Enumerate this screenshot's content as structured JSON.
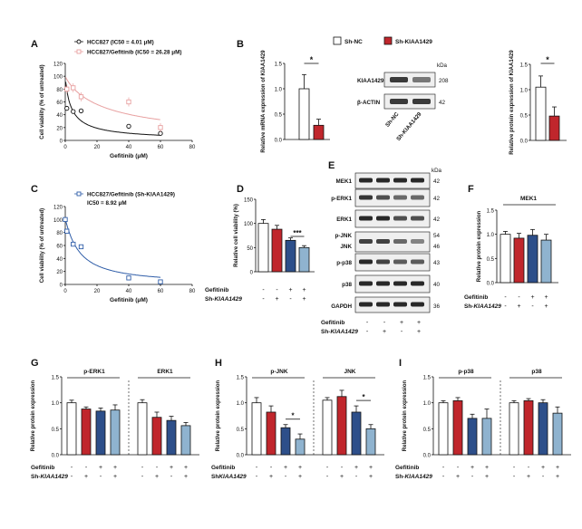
{
  "colors": {
    "sh_nc": "#ffffff",
    "sh_kiaa": "#c0262c",
    "dark_blue": "#2d4f8a",
    "light_blue": "#8fb3cf",
    "axis": "#111111",
    "pink": "#e8a0a0",
    "blue_line": "#2f5da8",
    "blot_bg": "#efefef",
    "blot_band": "#3a3a3a"
  },
  "legend_b": {
    "sh_nc": "Sh-NC",
    "sh_kiaa": "Sh-KIAA1429"
  },
  "panels": {
    "A": {
      "letter": "A",
      "legend1": "HCC827 (IC50 = 4.01 μM)",
      "legend2": "HCC827/Gefitinib (IC50 = 26.28 μM)",
      "ylabel": "Cell viability (% of untreated)",
      "xlabel": "Gefitinib (μM)",
      "xticks": [
        "0",
        "20",
        "40",
        "60",
        "80"
      ],
      "yticks": [
        "0",
        "20",
        "40",
        "60",
        "80",
        "100",
        "120"
      ],
      "curve1_ic50": 4.01,
      "curve2_ic50": 26.28,
      "points1": [
        [
          1,
          50
        ],
        [
          5,
          45
        ],
        [
          10,
          46
        ],
        [
          40,
          22
        ],
        [
          60,
          11
        ]
      ],
      "points2": [
        [
          1,
          80
        ],
        [
          5,
          82
        ],
        [
          10,
          68
        ],
        [
          40,
          60
        ],
        [
          60,
          20
        ]
      ]
    },
    "B": {
      "letter": "B",
      "ylabel": "Relative mRNA expression of KIAA1429",
      "yticks": [
        "0.0",
        "0.5",
        "1.0",
        "1.5"
      ],
      "values": [
        1.0,
        0.28
      ],
      "errors": [
        0.28,
        0.12
      ],
      "sig": "*",
      "blot_labels": [
        "KIAA1429",
        "β-ACTIN"
      ],
      "kda_title": "kDa",
      "kda": [
        "208",
        "42"
      ],
      "lanes": [
        "Sh-NC",
        "Sh-KIAA1429"
      ],
      "right_ylabel": "Relative protein expression of KIAA1429",
      "right_yticks": [
        "0.0",
        "0.5",
        "1.0",
        "1.5"
      ],
      "right_values": [
        1.05,
        0.48
      ],
      "right_errors": [
        0.22,
        0.18
      ],
      "right_sig": "*"
    },
    "C": {
      "letter": "C",
      "legend": "HCC827/Gefitinib (Sh-KIAA1429)",
      "legend2": "IC50 = 8.92 μM",
      "ylabel": "Cell viability (% of untreated)",
      "xlabel": "Gefitinib (μM)",
      "xticks": [
        "0",
        "20",
        "40",
        "60",
        "80"
      ],
      "yticks": [
        "0",
        "20",
        "40",
        "60",
        "80",
        "100",
        "120"
      ],
      "ic50": 8.92,
      "points": [
        [
          0,
          100
        ],
        [
          1,
          82
        ],
        [
          5,
          62
        ],
        [
          10,
          58
        ],
        [
          40,
          10
        ],
        [
          60,
          4
        ]
      ]
    },
    "D": {
      "letter": "D",
      "ylabel": "Relative cell viability (%)",
      "yticks": [
        "0",
        "50",
        "100",
        "150"
      ],
      "values": [
        100,
        88,
        65,
        50
      ],
      "errors": [
        8,
        8,
        5,
        4
      ],
      "sig": "***",
      "row1_label": "Gefitinib",
      "row1": [
        "-",
        "-",
        "+",
        "+"
      ],
      "row2_label": "Sh-KIAA1429",
      "row2": [
        "-",
        "+",
        "-",
        "+"
      ]
    },
    "E": {
      "letter": "E",
      "kda_title": "kDa",
      "blots": [
        "MEK1",
        "p-ERK1",
        "ERK1",
        "p-JNK",
        "JNK",
        "p-p38",
        "p38",
        "GAPDH"
      ],
      "kda": [
        "42",
        "42",
        "42",
        "54",
        "46",
        "43",
        "40",
        "36"
      ],
      "row1_label": "Gefitinib",
      "row1": [
        "-",
        "-",
        "+",
        "+"
      ],
      "row2_label": "Sh-KIAA1429",
      "row2": [
        "-",
        "+",
        "-",
        "+"
      ]
    },
    "F": {
      "letter": "F",
      "title": "MEK1",
      "ylabel": "Relative protein expression",
      "yticks": [
        "0.0",
        "0.5",
        "1.0",
        "1.5"
      ],
      "values": [
        1.0,
        0.92,
        0.98,
        0.88
      ],
      "errors": [
        0.06,
        0.1,
        0.12,
        0.12
      ],
      "row1_label": "Gefitinib",
      "row1": [
        "-",
        "-",
        "+",
        "+"
      ],
      "row2_label": "Sh-KIAA1429",
      "row2": [
        "-",
        "+",
        "-",
        "+"
      ]
    },
    "G": {
      "letter": "G",
      "titles": [
        "p-ERK1",
        "ERK1"
      ],
      "ylabel": "Relative protein expression",
      "yticks": [
        "0.0",
        "0.5",
        "1.0",
        "1.5"
      ],
      "values": [
        [
          1.0,
          0.88,
          0.84,
          0.86
        ],
        [
          1.0,
          0.72,
          0.66,
          0.56
        ]
      ],
      "errors": [
        [
          0.05,
          0.04,
          0.06,
          0.1
        ],
        [
          0.06,
          0.1,
          0.08,
          0.06
        ]
      ],
      "row1_label": "Gefitinib",
      "row1": [
        "-",
        "-",
        "+",
        "+",
        "-",
        "-",
        "+",
        "+"
      ],
      "row2_label": "Sh-KIAA1429",
      "row2": [
        "-",
        "+",
        "-",
        "+",
        "-",
        "+",
        "-",
        "+"
      ]
    },
    "H": {
      "letter": "H",
      "titles": [
        "p-JNK",
        "JNK"
      ],
      "ylabel": "Relative protein expression",
      "yticks": [
        "0.0",
        "0.5",
        "1.0",
        "1.5"
      ],
      "values": [
        [
          1.0,
          0.82,
          0.52,
          0.3
        ],
        [
          1.05,
          1.12,
          0.82,
          0.5
        ]
      ],
      "errors": [
        [
          0.1,
          0.12,
          0.06,
          0.1
        ],
        [
          0.05,
          0.12,
          0.12,
          0.08
        ]
      ],
      "sig": [
        "*",
        "*"
      ],
      "row1_label": "Gefitinib",
      "row1": [
        "-",
        "-",
        "+",
        "+",
        "-",
        "-",
        "+",
        "+"
      ],
      "row2_label": "ShKIAA1429",
      "row2": [
        "-",
        "+",
        "-",
        "+",
        "-",
        "+",
        "-",
        "+"
      ]
    },
    "I": {
      "letter": "I",
      "titles": [
        "p-p38",
        "p38"
      ],
      "ylabel": "Relative protein expression",
      "yticks": [
        "0.0",
        "0.5",
        "1.0",
        "1.5"
      ],
      "values": [
        [
          1.0,
          1.04,
          0.7,
          0.7
        ],
        [
          1.0,
          1.04,
          1.0,
          0.8
        ]
      ],
      "errors": [
        [
          0.04,
          0.06,
          0.08,
          0.18
        ],
        [
          0.04,
          0.04,
          0.06,
          0.12
        ]
      ],
      "row1_label": "Gefitinib",
      "row1": [
        "-",
        "-",
        "+",
        "+",
        "-",
        "-",
        "+",
        "+"
      ],
      "row2_label": "Sh-KIAA1429",
      "row2": [
        "-",
        "+",
        "-",
        "+",
        "-",
        "+",
        "-",
        "+"
      ]
    }
  }
}
